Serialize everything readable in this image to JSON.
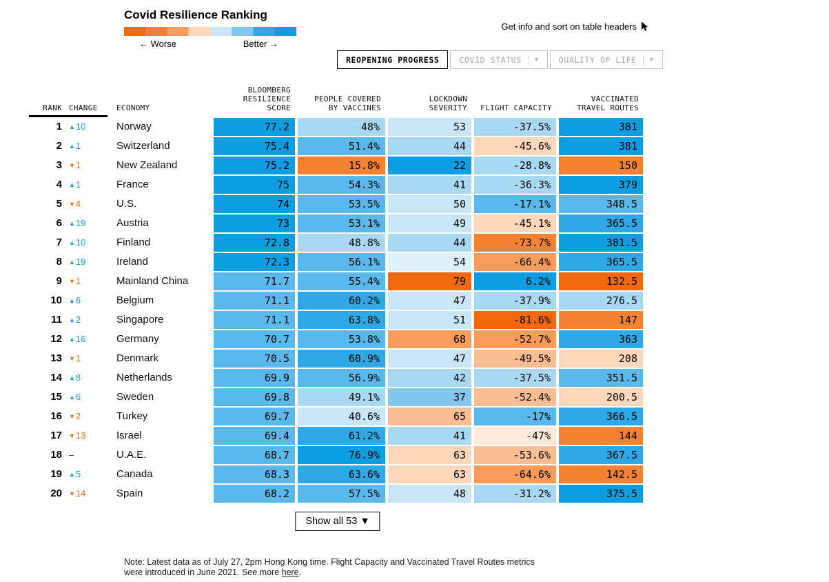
{
  "accent": {
    "up": "#0d9ee2",
    "down": "#f2690d",
    "neutral": "#333333"
  },
  "header": {
    "title": "Covid Resilience Ranking",
    "legend": {
      "worse": "← Worse",
      "better": "Better →",
      "gradient": [
        "#f2690d",
        "#f58232",
        "#f89b5b",
        "#fdd7ba",
        "#c9e6f8",
        "#82c7ee",
        "#2fa9e6",
        "#0d9ee2"
      ]
    },
    "hint": "Get info and sort on table headers",
    "tabs": [
      {
        "label": "REOPENING PROGRESS",
        "active": true,
        "dropdown": false
      },
      {
        "label": "COVID STATUS",
        "active": false,
        "dropdown": true
      },
      {
        "label": "QUALITY OF LIFE",
        "active": false,
        "dropdown": true
      }
    ]
  },
  "chart_data": {
    "type": "table",
    "title": "Covid Resilience Ranking",
    "columns": [
      "RANK",
      "CHANGE",
      "ECONOMY",
      "BLOOMBERG\nRESILIENCE\nSCORE",
      "PEOPLE COVERED\nBY VACCINES",
      "LOCKDOWN\nSEVERITY",
      "FLIGHT CAPACITY",
      "VACCINATED\nTRAVEL ROUTES"
    ],
    "rows": [
      {
        "rank": "1",
        "change": {
          "dir": "up",
          "n": "10"
        },
        "economy": "Norway",
        "cells": [
          {
            "v": "77.2",
            "bg": "#0d9ee2"
          },
          {
            "v": "48%",
            "bg": "#a9d8f3"
          },
          {
            "v": "53",
            "bg": "#c9e6f8"
          },
          {
            "v": "-37.5%",
            "bg": "#a9d8f3"
          },
          {
            "v": "381",
            "bg": "#0d9ee2"
          }
        ]
      },
      {
        "rank": "2",
        "change": {
          "dir": "up",
          "n": "1"
        },
        "economy": "Switzerland",
        "cells": [
          {
            "v": "75.4",
            "bg": "#0d9ee2"
          },
          {
            "v": "51.4%",
            "bg": "#5ab8ea"
          },
          {
            "v": "44",
            "bg": "#a9d8f3"
          },
          {
            "v": "-45.6%",
            "bg": "#fdd7ba"
          },
          {
            "v": "381",
            "bg": "#0d9ee2"
          }
        ]
      },
      {
        "rank": "3",
        "change": {
          "dir": "down",
          "n": "1"
        },
        "economy": "New Zealand",
        "cells": [
          {
            "v": "75.2",
            "bg": "#0d9ee2"
          },
          {
            "v": "15.8%",
            "bg": "#f58232"
          },
          {
            "v": "22",
            "bg": "#0d9ee2"
          },
          {
            "v": "-28.8%",
            "bg": "#a9d8f3"
          },
          {
            "v": "150",
            "bg": "#f58232"
          }
        ]
      },
      {
        "rank": "4",
        "change": {
          "dir": "up",
          "n": "1"
        },
        "economy": "France",
        "cells": [
          {
            "v": "75",
            "bg": "#0d9ee2"
          },
          {
            "v": "54.3%",
            "bg": "#5ab8ea"
          },
          {
            "v": "41",
            "bg": "#a9d8f3"
          },
          {
            "v": "-36.3%",
            "bg": "#a9d8f3"
          },
          {
            "v": "379",
            "bg": "#0d9ee2"
          }
        ]
      },
      {
        "rank": "5",
        "change": {
          "dir": "down",
          "n": "4"
        },
        "economy": "U.S.",
        "cells": [
          {
            "v": "74",
            "bg": "#0d9ee2"
          },
          {
            "v": "53.5%",
            "bg": "#5ab8ea"
          },
          {
            "v": "50",
            "bg": "#c9e6f8"
          },
          {
            "v": "-17.1%",
            "bg": "#5ab8ea"
          },
          {
            "v": "348.5",
            "bg": "#5ab8ea"
          }
        ]
      },
      {
        "rank": "6",
        "change": {
          "dir": "up",
          "n": "19"
        },
        "economy": "Austria",
        "cells": [
          {
            "v": "73",
            "bg": "#0d9ee2"
          },
          {
            "v": "53.1%",
            "bg": "#5ab8ea"
          },
          {
            "v": "49",
            "bg": "#c9e6f8"
          },
          {
            "v": "-45.1%",
            "bg": "#fdd7ba"
          },
          {
            "v": "365.5",
            "bg": "#2fa9e6"
          }
        ]
      },
      {
        "rank": "7",
        "change": {
          "dir": "up",
          "n": "10"
        },
        "economy": "Finland",
        "cells": [
          {
            "v": "72.8",
            "bg": "#0d9ee2"
          },
          {
            "v": "48.8%",
            "bg": "#a9d8f3"
          },
          {
            "v": "44",
            "bg": "#a9d8f3"
          },
          {
            "v": "-73.7%",
            "bg": "#f58232"
          },
          {
            "v": "381.5",
            "bg": "#0d9ee2"
          }
        ]
      },
      {
        "rank": "8",
        "change": {
          "dir": "up",
          "n": "19"
        },
        "economy": "Ireland",
        "cells": [
          {
            "v": "72.3",
            "bg": "#0d9ee2"
          },
          {
            "v": "56.1%",
            "bg": "#5ab8ea"
          },
          {
            "v": "54",
            "bg": "#def0fb"
          },
          {
            "v": "-66.4%",
            "bg": "#f89b5b"
          },
          {
            "v": "365.5",
            "bg": "#2fa9e6"
          }
        ]
      },
      {
        "rank": "9",
        "change": {
          "dir": "down",
          "n": "1"
        },
        "economy": "Mainland China",
        "cells": [
          {
            "v": "71.7",
            "bg": "#5ab8ea"
          },
          {
            "v": "55.4%",
            "bg": "#5ab8ea"
          },
          {
            "v": "79",
            "bg": "#f2690d"
          },
          {
            "v": "6.2%",
            "bg": "#0d9ee2"
          },
          {
            "v": "132.5",
            "bg": "#f2690d"
          }
        ]
      },
      {
        "rank": "10",
        "change": {
          "dir": "up",
          "n": "6"
        },
        "economy": "Belgium",
        "cells": [
          {
            "v": "71.1",
            "bg": "#5ab8ea"
          },
          {
            "v": "60.2%",
            "bg": "#2fa9e6"
          },
          {
            "v": "47",
            "bg": "#c9e6f8"
          },
          {
            "v": "-37.9%",
            "bg": "#a9d8f3"
          },
          {
            "v": "276.5",
            "bg": "#a9d8f3"
          }
        ]
      },
      {
        "rank": "11",
        "change": {
          "dir": "up",
          "n": "2"
        },
        "economy": "Singapore",
        "cells": [
          {
            "v": "71.1",
            "bg": "#5ab8ea"
          },
          {
            "v": "63.8%",
            "bg": "#2fa9e6"
          },
          {
            "v": "51",
            "bg": "#c9e6f8"
          },
          {
            "v": "-81.6%",
            "bg": "#f2690d"
          },
          {
            "v": "147",
            "bg": "#f58232"
          }
        ]
      },
      {
        "rank": "12",
        "change": {
          "dir": "up",
          "n": "16"
        },
        "economy": "Germany",
        "cells": [
          {
            "v": "70.7",
            "bg": "#5ab8ea"
          },
          {
            "v": "53.8%",
            "bg": "#5ab8ea"
          },
          {
            "v": "68",
            "bg": "#f89b5b"
          },
          {
            "v": "-52.7%",
            "bg": "#f89b5b"
          },
          {
            "v": "363",
            "bg": "#2fa9e6"
          }
        ]
      },
      {
        "rank": "13",
        "change": {
          "dir": "down",
          "n": "1"
        },
        "economy": "Denmark",
        "cells": [
          {
            "v": "70.5",
            "bg": "#5ab8ea"
          },
          {
            "v": "60.9%",
            "bg": "#2fa9e6"
          },
          {
            "v": "47",
            "bg": "#c9e6f8"
          },
          {
            "v": "-49.5%",
            "bg": "#fbbd92"
          },
          {
            "v": "208",
            "bg": "#fdd7ba"
          }
        ]
      },
      {
        "rank": "14",
        "change": {
          "dir": "up",
          "n": "8"
        },
        "economy": "Netherlands",
        "cells": [
          {
            "v": "69.9",
            "bg": "#5ab8ea"
          },
          {
            "v": "56.9%",
            "bg": "#5ab8ea"
          },
          {
            "v": "42",
            "bg": "#a9d8f3"
          },
          {
            "v": "-37.5%",
            "bg": "#a9d8f3"
          },
          {
            "v": "351.5",
            "bg": "#5ab8ea"
          }
        ]
      },
      {
        "rank": "15",
        "change": {
          "dir": "up",
          "n": "6"
        },
        "economy": "Sweden",
        "cells": [
          {
            "v": "69.8",
            "bg": "#5ab8ea"
          },
          {
            "v": "49.1%",
            "bg": "#a9d8f3"
          },
          {
            "v": "37",
            "bg": "#82c7ee"
          },
          {
            "v": "-52.4%",
            "bg": "#fbbd92"
          },
          {
            "v": "200.5",
            "bg": "#fdd7ba"
          }
        ]
      },
      {
        "rank": "16",
        "change": {
          "dir": "down",
          "n": "2"
        },
        "economy": "Turkey",
        "cells": [
          {
            "v": "69.7",
            "bg": "#5ab8ea"
          },
          {
            "v": "40.6%",
            "bg": "#c9e6f8"
          },
          {
            "v": "65",
            "bg": "#fbbd92"
          },
          {
            "v": "-17%",
            "bg": "#5ab8ea"
          },
          {
            "v": "366.5",
            "bg": "#2fa9e6"
          }
        ]
      },
      {
        "rank": "17",
        "change": {
          "dir": "down",
          "n": "13"
        },
        "economy": "Israel",
        "cells": [
          {
            "v": "69.4",
            "bg": "#5ab8ea"
          },
          {
            "v": "61.2%",
            "bg": "#2fa9e6"
          },
          {
            "v": "41",
            "bg": "#a9d8f3"
          },
          {
            "v": "-47%",
            "bg": "#feead9"
          },
          {
            "v": "144",
            "bg": "#f58232"
          }
        ]
      },
      {
        "rank": "18",
        "change": {
          "dir": "none",
          "n": ""
        },
        "economy": "U.A.E.",
        "cells": [
          {
            "v": "68.7",
            "bg": "#5ab8ea"
          },
          {
            "v": "76.9%",
            "bg": "#0d9ee2"
          },
          {
            "v": "63",
            "bg": "#fdd7ba"
          },
          {
            "v": "-53.6%",
            "bg": "#fbbd92"
          },
          {
            "v": "367.5",
            "bg": "#2fa9e6"
          }
        ]
      },
      {
        "rank": "19",
        "change": {
          "dir": "up",
          "n": "5"
        },
        "economy": "Canada",
        "cells": [
          {
            "v": "68.3",
            "bg": "#5ab8ea"
          },
          {
            "v": "63.6%",
            "bg": "#2fa9e6"
          },
          {
            "v": "63",
            "bg": "#fdd7ba"
          },
          {
            "v": "-64.6%",
            "bg": "#f89b5b"
          },
          {
            "v": "142.5",
            "bg": "#f58232"
          }
        ]
      },
      {
        "rank": "20",
        "change": {
          "dir": "down",
          "n": "14"
        },
        "economy": "Spain",
        "cells": [
          {
            "v": "68.2",
            "bg": "#5ab8ea"
          },
          {
            "v": "57.5%",
            "bg": "#5ab8ea"
          },
          {
            "v": "48",
            "bg": "#c9e6f8"
          },
          {
            "v": "-31.2%",
            "bg": "#a9d8f3"
          },
          {
            "v": "375.5",
            "bg": "#0d9ee2"
          }
        ]
      }
    ]
  },
  "footer": {
    "show_all": "Show all 53 ▼",
    "note_before": "Note: Latest data as of July 27, 2pm Hong Kong time. Flight Capacity and Vaccinated Travel Routes metrics were introduced in June 2021. See more ",
    "note_link": "here",
    "note_after": "."
  }
}
